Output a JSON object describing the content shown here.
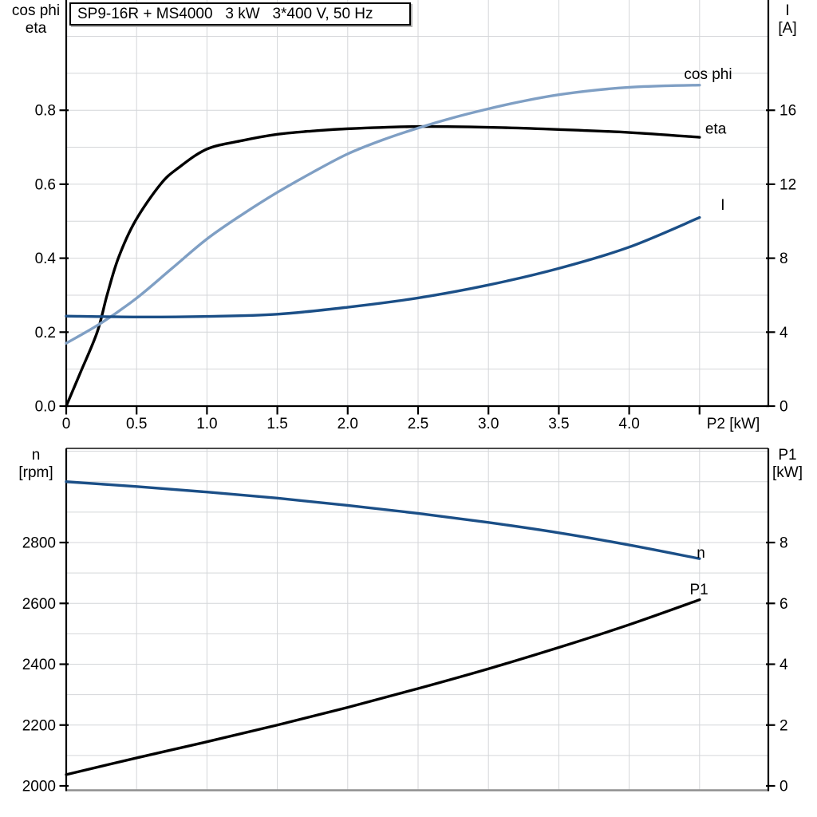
{
  "colors": {
    "black": "#000000",
    "dark_blue": "#1b4f87",
    "light_blue": "#7f9fc4",
    "grid": "#d4d6d9",
    "frame_dark": "#4a4a4a",
    "frame_gray": "#8f8f8f"
  },
  "chart_data": [
    {
      "type": "line",
      "name": "motor-electrical-performance",
      "title_box": "SP9-16R + MS4000   3 kW   3*400 V, 50 Hz",
      "x_axis": {
        "label": "P2 [kW]",
        "min": 0,
        "max": 4.99,
        "tick_step": 0.5,
        "tick_labels": [
          "0",
          "0.5",
          "1.0",
          "1.5",
          "2.0",
          "2.5",
          "3.0",
          "3.5",
          "4.0"
        ],
        "grid": true
      },
      "left_axis": {
        "title": [
          "cos phi",
          "eta"
        ],
        "min": 0.0,
        "max": 1.1,
        "minor_grid_step": 0.1,
        "ticks": [
          {
            "v": 0.0,
            "label": "0.0"
          },
          {
            "v": 0.2,
            "label": "0.2"
          },
          {
            "v": 0.4,
            "label": "0.4"
          },
          {
            "v": 0.6,
            "label": "0.6"
          },
          {
            "v": 0.8,
            "label": "0.8"
          }
        ]
      },
      "right_axis": {
        "title": [
          "I",
          "[A]"
        ],
        "min": 0,
        "max": 22,
        "ticks": [
          {
            "v": 0,
            "label": "0"
          },
          {
            "v": 4,
            "label": "4"
          },
          {
            "v": 8,
            "label": "8"
          },
          {
            "v": 12,
            "label": "12"
          },
          {
            "v": 16,
            "label": "16"
          }
        ]
      },
      "series": [
        {
          "name": "eta",
          "axis": "left",
          "color_key": "black",
          "x": [
            0,
            0.1,
            0.22,
            0.29,
            0.37,
            0.49,
            0.67,
            0.8,
            1.0,
            1.25,
            1.5,
            1.75,
            2.0,
            2.5,
            3.0,
            3.5,
            4.0,
            4.5
          ],
          "y": [
            0,
            0.09,
            0.2,
            0.3,
            0.4,
            0.5,
            0.6,
            0.645,
            0.695,
            0.718,
            0.735,
            0.744,
            0.75,
            0.756,
            0.754,
            0.748,
            0.74,
            0.727
          ],
          "label": {
            "text": "eta",
            "x": 4.54,
            "v": 0.737
          }
        },
        {
          "name": "cos phi",
          "axis": "left",
          "color_key": "light_blue",
          "x": [
            0,
            0.25,
            0.5,
            0.75,
            1.0,
            1.25,
            1.5,
            1.75,
            2.0,
            2.25,
            2.5,
            2.75,
            3.0,
            3.25,
            3.5,
            3.75,
            4.0,
            4.25,
            4.5
          ],
          "y": [
            0.17,
            0.225,
            0.292,
            0.372,
            0.452,
            0.518,
            0.578,
            0.632,
            0.682,
            0.72,
            0.752,
            0.78,
            0.804,
            0.825,
            0.842,
            0.854,
            0.862,
            0.866,
            0.868
          ],
          "label": {
            "text": "cos phi",
            "x": 4.39,
            "v": 0.885
          }
        },
        {
          "name": "I",
          "axis": "right",
          "color_key": "dark_blue",
          "x": [
            0,
            0.5,
            1.0,
            1.5,
            2.0,
            2.5,
            3.0,
            3.5,
            4.0,
            4.5
          ],
          "y": [
            4.87,
            4.82,
            4.85,
            4.97,
            5.35,
            5.85,
            6.55,
            7.45,
            8.6,
            10.2
          ],
          "label": {
            "text": "I",
            "x": 4.65,
            "v": 10.62
          }
        }
      ]
    },
    {
      "type": "line",
      "name": "motor-speed-and-input-power",
      "x_axis": {
        "label": "",
        "min": 0,
        "max": 4.99,
        "tick_step": 0.5,
        "tick_labels": [],
        "grid": true
      },
      "left_axis": {
        "title": [
          "n",
          "[rpm]"
        ],
        "min": 2000,
        "max": 3110,
        "minor_grid_step": 100,
        "ticks": [
          {
            "v": 2000,
            "label": "2000"
          },
          {
            "v": 2200,
            "label": "2200"
          },
          {
            "v": 2400,
            "label": "2400"
          },
          {
            "v": 2600,
            "label": "2600"
          },
          {
            "v": 2800,
            "label": "2800"
          }
        ]
      },
      "right_axis": {
        "title": [
          "P1",
          "[kW]"
        ],
        "min": 0,
        "max": 11.1,
        "ticks": [
          {
            "v": 0,
            "label": "0"
          },
          {
            "v": 2,
            "label": "2"
          },
          {
            "v": 4,
            "label": "4"
          },
          {
            "v": 6,
            "label": "6"
          },
          {
            "v": 8,
            "label": "8"
          }
        ]
      },
      "series": [
        {
          "name": "n",
          "axis": "left",
          "color_key": "dark_blue",
          "x": [
            0,
            0.5,
            1.0,
            1.5,
            2.0,
            2.5,
            3.0,
            3.5,
            4.0,
            4.5
          ],
          "y": [
            3000,
            2984,
            2966,
            2946,
            2922,
            2896,
            2866,
            2832,
            2792,
            2747
          ],
          "label": {
            "text": "n",
            "x": 4.48,
            "v": 2750
          }
        },
        {
          "name": "P1",
          "axis": "right",
          "color_key": "black",
          "x": [
            0,
            0.5,
            1.0,
            1.5,
            2.0,
            2.5,
            3.0,
            3.5,
            4.0,
            4.5
          ],
          "y": [
            0.37,
            0.92,
            1.45,
            2.0,
            2.58,
            3.2,
            3.85,
            4.55,
            5.3,
            6.12
          ],
          "label": {
            "text": "P1",
            "x": 4.43,
            "v": 6.3
          }
        }
      ]
    }
  ]
}
